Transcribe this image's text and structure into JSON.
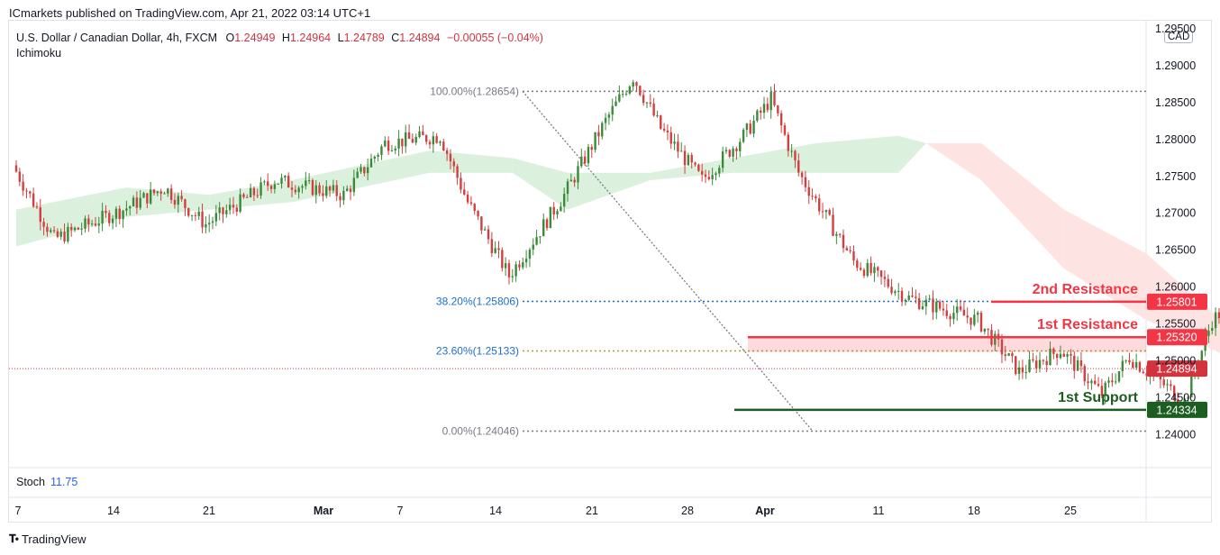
{
  "header": {
    "published": "ICmarkets published on TradingView.com, Apr 21, 2022 03:14 UTC+1"
  },
  "symbol": {
    "title": "U.S. Dollar / Canadian Dollar, 4h, FXCM",
    "o_label": "O",
    "o": "1.24949",
    "h_label": "H",
    "h": "1.24964",
    "l_label": "L",
    "l": "1.24789",
    "c_label": "C",
    "c": "1.24894",
    "change": "−0.00055 (−0.04%)"
  },
  "indicator": "Ichimoku",
  "currency": "CAD",
  "stoch": {
    "label": "Stoch",
    "value": "11.75"
  },
  "footer": {
    "brand": "TradingView"
  },
  "colors": {
    "up": "#26a69a",
    "down": "#ef5350",
    "candle_up": "#3a8a3a",
    "candle_down": "#d23f3f",
    "resistance": "#f23645",
    "support": "#1b5e20",
    "fib_blue": "#1e6ed1",
    "fib_gold": "#b89b2f",
    "cloud_green": "#d7efd9",
    "cloud_red": "#fde0de"
  },
  "chart_data": {
    "type": "candlestick",
    "ylim": [
      1.236,
      1.2955
    ],
    "y_ticks": [
      "1.29500",
      "1.29000",
      "1.28500",
      "1.28000",
      "1.27500",
      "1.27000",
      "1.26500",
      "1.26000",
      "1.25500",
      "1.25000",
      "1.24500",
      "1.24000"
    ],
    "y_tick_values": [
      1.295,
      1.29,
      1.285,
      1.28,
      1.275,
      1.27,
      1.265,
      1.26,
      1.255,
      1.25,
      1.245,
      1.24
    ],
    "x_ticks": [
      "7",
      "14",
      "21",
      "Mar",
      "7",
      "14",
      "21",
      "28",
      "Apr",
      "11",
      "18",
      "25"
    ],
    "x_tick_index": [
      0,
      1,
      2,
      3,
      4,
      5,
      6,
      7,
      8,
      9,
      10,
      11
    ],
    "price_anchors": [
      {
        "d": 0,
        "p": 1.2765
      },
      {
        "d": 3,
        "p": 1.2665
      },
      {
        "d": 8,
        "p": 1.2705
      },
      {
        "d": 11,
        "p": 1.2735
      },
      {
        "d": 14,
        "p": 1.2685
      },
      {
        "d": 19,
        "p": 1.2745
      },
      {
        "d": 24,
        "p": 1.2725
      },
      {
        "d": 27,
        "p": 1.2795
      },
      {
        "d": 31,
        "p": 1.2805
      },
      {
        "d": 33,
        "p": 1.2715
      },
      {
        "d": 36,
        "p": 1.2615
      },
      {
        "d": 40,
        "p": 1.2725
      },
      {
        "d": 43,
        "p": 1.2825
      },
      {
        "d": 45,
        "p": 1.2885
      },
      {
        "d": 47,
        "p": 1.2815
      },
      {
        "d": 50,
        "p": 1.2745
      },
      {
        "d": 53,
        "p": 1.2805
      },
      {
        "d": 55,
        "p": 1.2855
      },
      {
        "d": 57,
        "p": 1.2755
      },
      {
        "d": 61,
        "p": 1.2635
      },
      {
        "d": 65,
        "p": 1.2585
      },
      {
        "d": 70,
        "p": 1.2555
      },
      {
        "d": 73,
        "p": 1.2485
      },
      {
        "d": 76,
        "p": 1.2515
      },
      {
        "d": 79,
        "p": 1.2455
      },
      {
        "d": 81,
        "p": 1.2505
      },
      {
        "d": 85,
        "p": 1.2445
      },
      {
        "d": 87,
        "p": 1.2555
      },
      {
        "d": 90,
        "p": 1.2605
      },
      {
        "d": 93,
        "p": 1.2625
      },
      {
        "d": 95,
        "p": 1.2645
      },
      {
        "d": 97,
        "p": 1.2605
      },
      {
        "d": 98,
        "p": 1.2545
      },
      {
        "d": 100,
        "p": 1.2605
      },
      {
        "d": 102,
        "p": 1.2625
      },
      {
        "d": 104,
        "p": 1.2595
      },
      {
        "d": 106,
        "p": 1.2615
      },
      {
        "d": 107,
        "p": 1.2555
      },
      {
        "d": 108,
        "p": 1.2495
      },
      {
        "d": 109,
        "p": 1.2489
      }
    ],
    "ichimoku_cloud": [
      {
        "d": 0,
        "a": 1.2705,
        "b": 1.2655
      },
      {
        "d": 8,
        "a": 1.2735,
        "b": 1.2695
      },
      {
        "d": 14,
        "a": 1.2725,
        "b": 1.2705
      },
      {
        "d": 20,
        "a": 1.2745,
        "b": 1.2715
      },
      {
        "d": 30,
        "a": 1.2785,
        "b": 1.2755
      },
      {
        "d": 36,
        "a": 1.2775,
        "b": 1.2755
      },
      {
        "d": 40,
        "a": 1.2755,
        "b": 1.2705
      },
      {
        "d": 46,
        "a": 1.2755,
        "b": 1.2745
      },
      {
        "d": 52,
        "a": 1.2775,
        "b": 1.2755
      },
      {
        "d": 58,
        "a": 1.2795,
        "b": 1.2755
      },
      {
        "d": 64,
        "a": 1.2805,
        "b": 1.2755
      },
      {
        "d": 66,
        "a": 1.2795,
        "b": 1.2795
      },
      {
        "d": 70,
        "a": 1.2745,
        "b": 1.2795
      },
      {
        "d": 76,
        "a": 1.2625,
        "b": 1.2705
      },
      {
        "d": 82,
        "a": 1.2555,
        "b": 1.2645
      },
      {
        "d": 88,
        "a": 1.2505,
        "b": 1.2545
      },
      {
        "d": 92,
        "a": 1.2495,
        "b": 1.2475
      },
      {
        "d": 95,
        "a": 1.2505,
        "b": 1.2485
      },
      {
        "d": 98,
        "a": 1.2555,
        "b": 1.2515
      },
      {
        "d": 102,
        "a": 1.2595,
        "b": 1.2545
      },
      {
        "d": 106,
        "a": 1.2615,
        "b": 1.2555
      },
      {
        "d": 112,
        "a": 1.2585,
        "b": 1.2555
      },
      {
        "d": 118,
        "a": 1.2555,
        "b": 1.2525
      },
      {
        "d": 124,
        "a": 1.2535,
        "b": 1.2525
      }
    ],
    "fibonacci": {
      "high": 1.28654,
      "low": 1.24046,
      "levels": [
        {
          "label": "100.00%(1.28654)",
          "value": 1.28654
        },
        {
          "label": "38.20%(1.25806)",
          "value": 1.25806
        },
        {
          "label": "23.60%(1.25133)",
          "value": 1.25133
        },
        {
          "label": "0.00%(1.24046)",
          "value": 1.24046
        }
      ]
    },
    "levels": [
      {
        "name": "2nd Resistance",
        "value": 1.25801,
        "tag": "1.25801"
      },
      {
        "name": "1st Resistance",
        "value": 1.2532,
        "tag": "1.25320"
      },
      {
        "name": "1st Support",
        "value": 1.24334,
        "tag": "1.24334"
      }
    ],
    "last_price": {
      "value": 1.24894,
      "tag": "1.24894"
    }
  }
}
